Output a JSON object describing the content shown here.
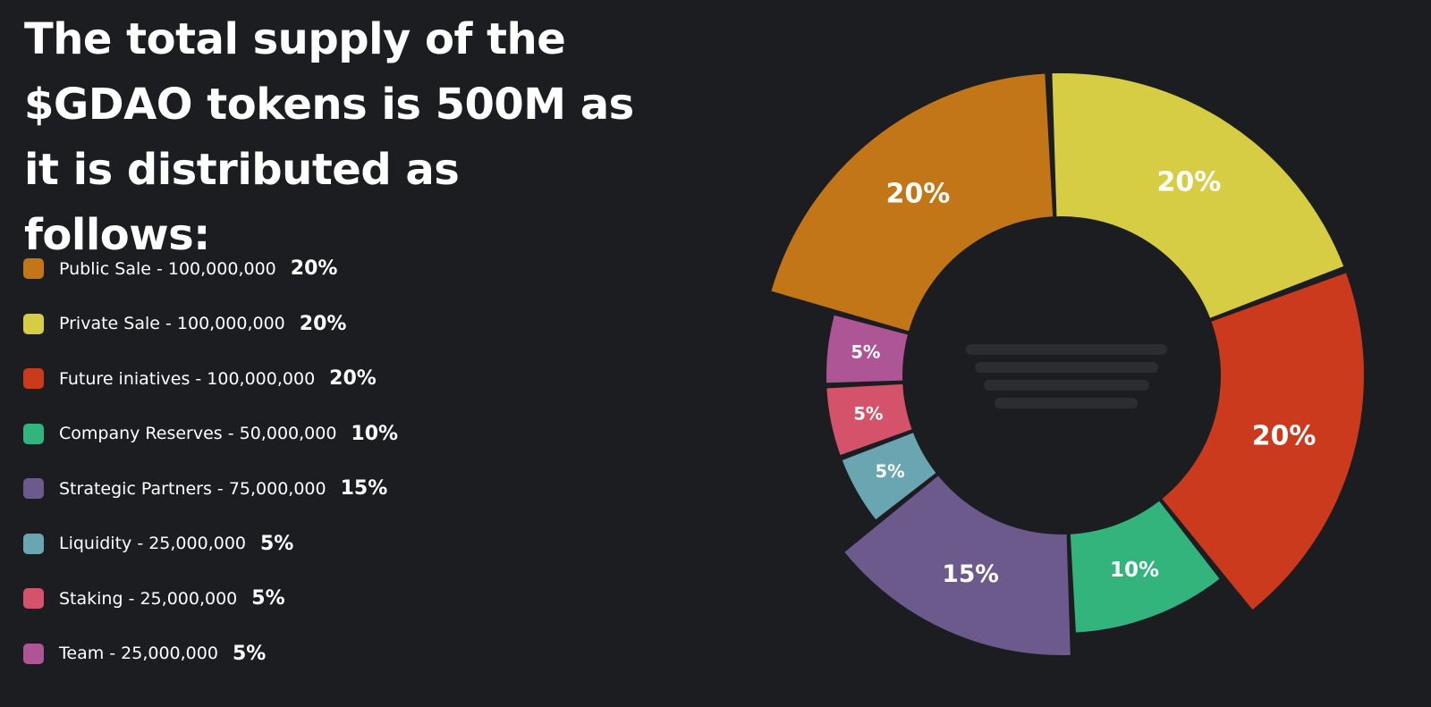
{
  "chart_data": {
    "type": "donut",
    "title": "The total supply of the $GDAO tokens is 500M as it is distributed as follows:",
    "categories": [
      "Public Sale - 100,000,000",
      "Private Sale - 100,000,000",
      "Future iniatives - 100,000,000",
      "Company Reserves - 50,000,000",
      "Strategic Partners - 75,000,000",
      "Liquidity - 25,000,000",
      "Staking - 25,000,000",
      "Team - 25,000,000"
    ],
    "values": [
      20,
      20,
      20,
      10,
      15,
      5,
      5,
      5
    ],
    "value_labels": [
      "20%",
      "20%",
      "20%",
      "10%",
      "15%",
      "5%",
      "5%",
      "5%"
    ],
    "colors": [
      "#c27617",
      "#d6cd45",
      "#cc3a1e",
      "#33b47d",
      "#6c5a8c",
      "#6aa6b2",
      "#d4526a",
      "#ae5596"
    ]
  }
}
